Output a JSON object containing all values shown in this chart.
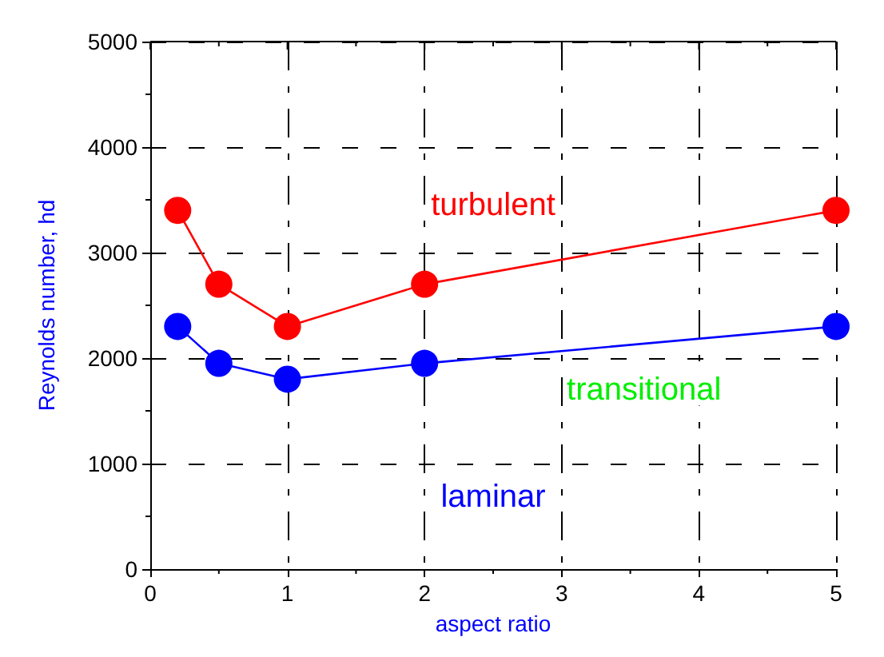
{
  "chart_data": {
    "type": "line",
    "xlabel": "aspect ratio",
    "ylabel": "Reynolds number, hd",
    "x": [
      0.2,
      0.5,
      1,
      2,
      5
    ],
    "series": [
      {
        "color": "#ff0000",
        "values": [
          3400,
          2700,
          2300,
          2700,
          3400
        ]
      },
      {
        "color": "#0000ff",
        "values": [
          2300,
          1950,
          1800,
          1950,
          2300
        ]
      }
    ],
    "xlim": [
      0,
      5
    ],
    "xticks": [
      0,
      1,
      2,
      3,
      4,
      5
    ],
    "ylim": [
      0,
      5000
    ],
    "yticks": [
      0,
      1000,
      2000,
      3000,
      4000,
      5000
    ],
    "grid": true,
    "marker": "circle",
    "line_style": "solid",
    "annotations": [
      "turbulent",
      "transitional",
      "laminar"
    ]
  }
}
